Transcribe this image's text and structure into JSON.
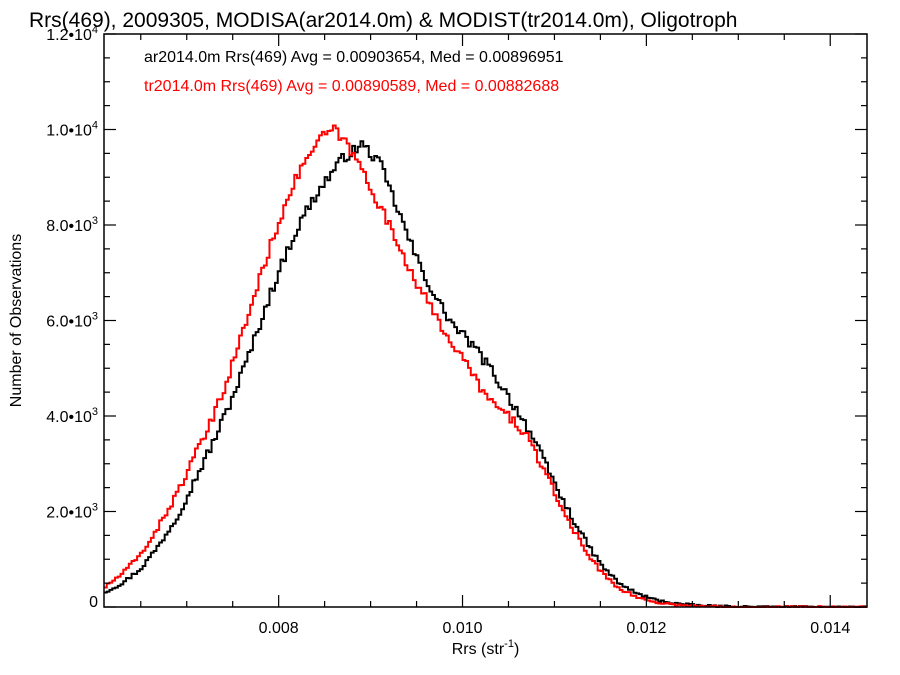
{
  "chart_data": {
    "type": "line",
    "title": "Rrs(469), 2009305, MODISA(ar2014.0m) & MODIST(tr2014.0m), Oligotroph",
    "xlabel": "Rrs (str",
    "xlabel_superscript": "-1",
    "xlabel_suffix": ")",
    "ylabel": "Number of Observations",
    "xlim": [
      0.0061,
      0.0144
    ],
    "ylim": [
      0,
      12000
    ],
    "x_ticks": [
      {
        "value": 0.008,
        "label": "0.008"
      },
      {
        "value": 0.01,
        "label": "0.010"
      },
      {
        "value": 0.012,
        "label": "0.012"
      },
      {
        "value": 0.014,
        "label": "0.014"
      }
    ],
    "y_ticks": [
      {
        "value": 0,
        "mantissa": "0",
        "exp": ""
      },
      {
        "value": 2000,
        "mantissa": "2.0•10",
        "exp": "3"
      },
      {
        "value": 4000,
        "mantissa": "4.0•10",
        "exp": "3"
      },
      {
        "value": 6000,
        "mantissa": "6.0•10",
        "exp": "3"
      },
      {
        "value": 8000,
        "mantissa": "8.0•10",
        "exp": "3"
      },
      {
        "value": 10000,
        "mantissa": "1.0•10",
        "exp": "4"
      },
      {
        "value": 12000,
        "mantissa": "1.2•10",
        "exp": "4"
      }
    ],
    "grid": false,
    "annotations": [
      {
        "text": "ar2014.0m Rrs(469) Avg = 0.00903654, Med = 0.00896951",
        "color": "#000000"
      },
      {
        "text": "tr2014.0m Rrs(469) Avg = 0.00890589, Med = 0.00882688",
        "color": "#ff0000"
      }
    ],
    "series": [
      {
        "color": "#000000",
        "x": [
          0.0061,
          0.0063,
          0.0065,
          0.0067,
          0.0069,
          0.0071,
          0.0073,
          0.0075,
          0.0077,
          0.0079,
          0.0081,
          0.0083,
          0.0085,
          0.0087,
          0.00885,
          0.0089,
          0.0091,
          0.0093,
          0.0095,
          0.0097,
          0.0099,
          0.0101,
          0.0103,
          0.0105,
          0.0107,
          0.0109,
          0.0111,
          0.0113,
          0.0115,
          0.0117,
          0.0119,
          0.0121,
          0.0123,
          0.0125,
          0.0127,
          0.0129,
          0.0131,
          0.0133,
          0.0135,
          0.0137,
          0.0139,
          0.0141,
          0.0143,
          0.0144
        ],
        "y": [
          300,
          500,
          800,
          1300,
          1900,
          2700,
          3500,
          4400,
          5400,
          6500,
          7500,
          8300,
          8900,
          9400,
          9600,
          9700,
          9300,
          8300,
          7300,
          6500,
          5900,
          5500,
          5000,
          4400,
          3800,
          3000,
          2200,
          1500,
          900,
          500,
          280,
          150,
          80,
          40,
          20,
          10,
          5,
          2,
          1,
          0,
          0,
          0,
          0,
          0
        ]
      },
      {
        "color": "#ff0000",
        "x": [
          0.0061,
          0.0063,
          0.0065,
          0.0067,
          0.0069,
          0.0071,
          0.0073,
          0.0075,
          0.0077,
          0.0079,
          0.0081,
          0.0083,
          0.0085,
          0.0086,
          0.0087,
          0.0089,
          0.0091,
          0.0093,
          0.0095,
          0.0097,
          0.0099,
          0.0101,
          0.0103,
          0.0105,
          0.0107,
          0.0109,
          0.0111,
          0.0113,
          0.0115,
          0.0117,
          0.0119,
          0.0121,
          0.0123,
          0.0125,
          0.0127,
          0.0129,
          0.0131,
          0.0133,
          0.0135,
          0.0137,
          0.0139,
          0.0141,
          0.0143,
          0.0144
        ],
        "y": [
          400,
          700,
          1100,
          1700,
          2400,
          3200,
          4000,
          5100,
          6300,
          7500,
          8600,
          9400,
          9900,
          10000,
          9800,
          9200,
          8400,
          7600,
          6800,
          6100,
          5500,
          4900,
          4300,
          4000,
          3600,
          2800,
          2000,
          1300,
          750,
          400,
          200,
          100,
          50,
          25,
          10,
          5,
          2,
          1,
          0,
          0,
          0,
          0,
          0,
          0
        ]
      }
    ]
  }
}
